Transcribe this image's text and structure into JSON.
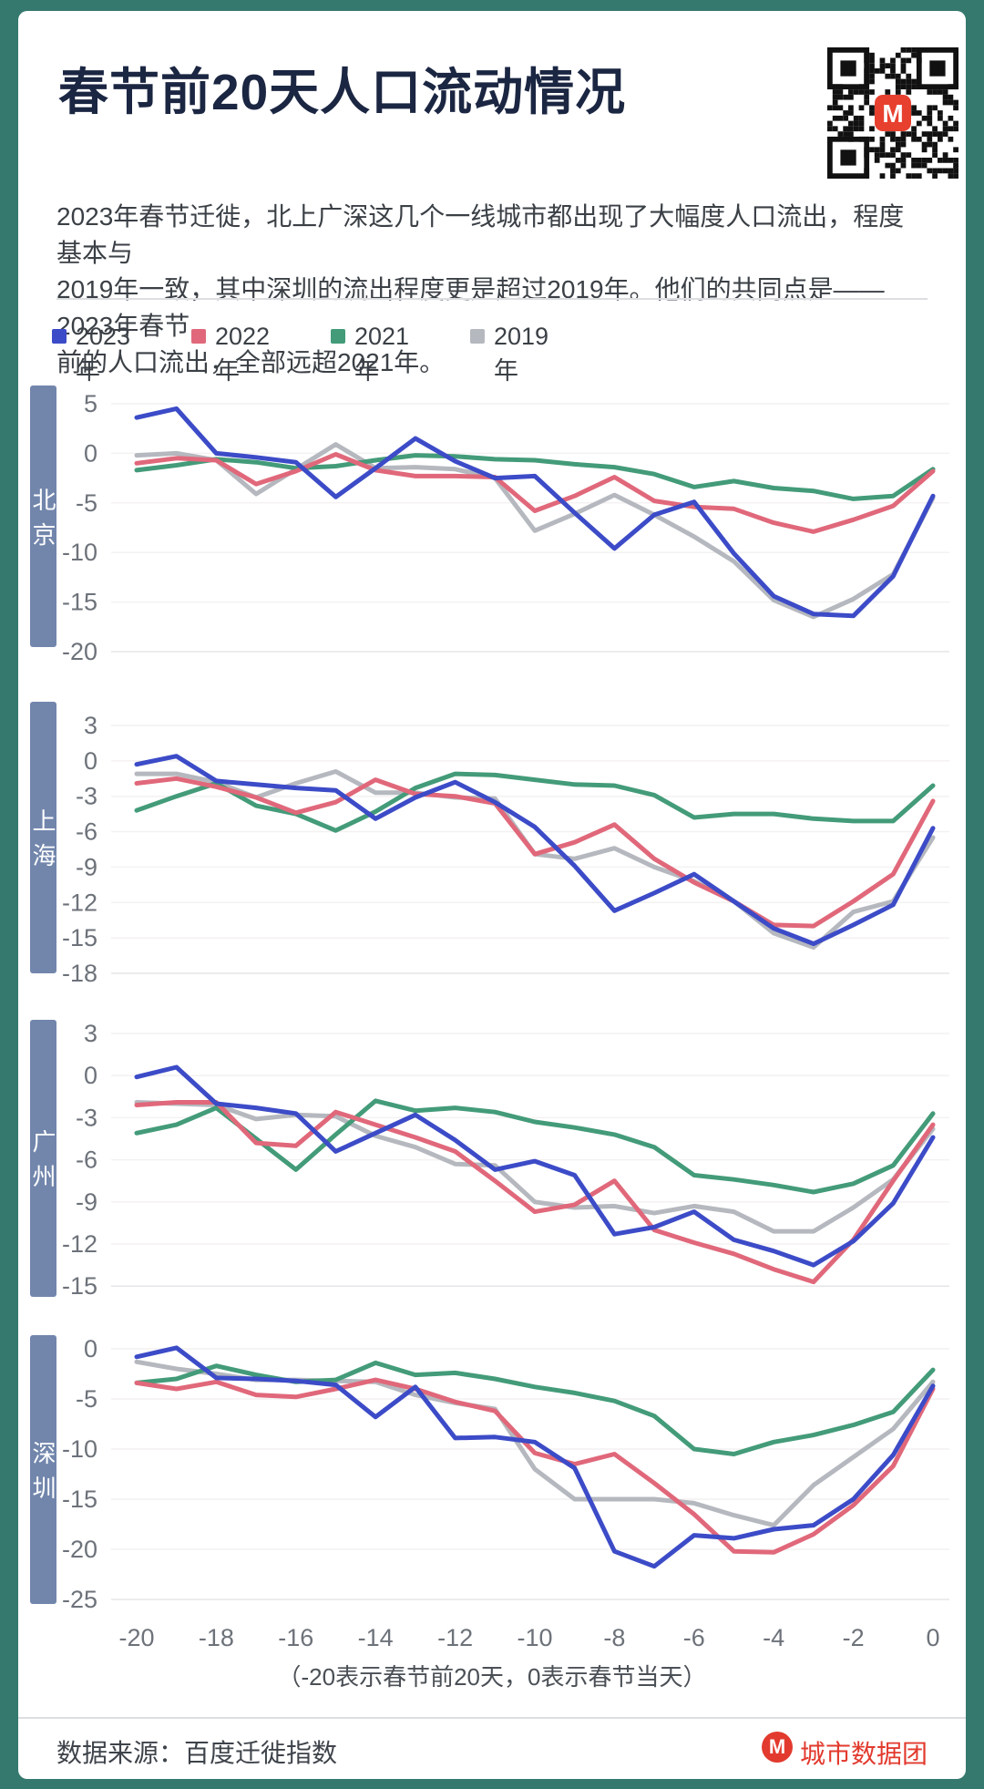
{
  "frame": {
    "border_color": "#35786e"
  },
  "header": {
    "title": "春节前20天人口流动情况",
    "qr_icon": "qr-code-with-brand-logo"
  },
  "intro": {
    "text": "2023年春节迁徙，北上广深这几个一线城市都出现了大幅度人口流出，程度基本与\n2019年一致，其中深圳的流出程度更是超过2019年。他们的共同点是——2023年春节\n前的人口流出，全部远超2021年。"
  },
  "legend": {
    "items": [
      {
        "label": "2023年",
        "color": "#3c4bc7"
      },
      {
        "label": "2022年",
        "color": "#e0687a"
      },
      {
        "label": "2021年",
        "color": "#439b79"
      },
      {
        "label": "2019年",
        "color": "#b5b8be"
      }
    ]
  },
  "chart_data": [
    {
      "type": "line",
      "city": "北京",
      "x_range": [
        -20,
        0
      ],
      "x_step": 1,
      "yticks": [
        5,
        0,
        -5,
        -10,
        -15,
        -20
      ],
      "ylim": [
        -20,
        5
      ],
      "grid": "horizontal-faint",
      "series": [
        {
          "name": "2023年",
          "color": "#3c4bc7",
          "values": [
            3.6,
            4.5,
            0.0,
            -0.4,
            -0.9,
            -4.4,
            -1.5,
            1.5,
            -0.8,
            -2.5,
            -2.3,
            -6.0,
            -9.6,
            -6.2,
            -4.9,
            -10.1,
            -14.4,
            -16.2,
            -16.4,
            -12.4,
            -4.3
          ]
        },
        {
          "name": "2022年",
          "color": "#e0687a",
          "values": [
            -1.0,
            -0.5,
            -0.7,
            -3.1,
            -1.8,
            -0.1,
            -1.7,
            -2.3,
            -2.3,
            -2.4,
            -5.8,
            -4.3,
            -2.4,
            -4.8,
            -5.4,
            -5.6,
            -7.0,
            -7.9,
            -6.7,
            -5.3,
            -1.8
          ]
        },
        {
          "name": "2021年",
          "color": "#439b79",
          "values": [
            -1.7,
            -1.2,
            -0.6,
            -0.9,
            -1.5,
            -1.3,
            -0.7,
            -0.2,
            -0.3,
            -0.6,
            -0.7,
            -1.1,
            -1.4,
            -2.1,
            -3.4,
            -2.8,
            -3.5,
            -3.8,
            -4.6,
            -4.3,
            -1.6
          ]
        },
        {
          "name": "2019年",
          "color": "#b5b8be",
          "values": [
            -0.2,
            0.0,
            -0.7,
            -4.1,
            -1.6,
            0.9,
            -1.5,
            -1.4,
            -1.6,
            -2.5,
            -7.8,
            -6.1,
            -4.2,
            -6.2,
            -8.4,
            -10.9,
            -14.8,
            -16.5,
            -14.7,
            -12.2,
            -4.5
          ]
        }
      ]
    },
    {
      "type": "line",
      "city": "上海",
      "x_range": [
        -20,
        0
      ],
      "x_step": 1,
      "yticks": [
        3,
        0,
        -3,
        -6,
        -9,
        -12,
        -15,
        -18
      ],
      "ylim": [
        -18,
        3
      ],
      "grid": "horizontal-faint",
      "series": [
        {
          "name": "2023年",
          "color": "#3c4bc7",
          "values": [
            -0.3,
            0.4,
            -1.7,
            -2.0,
            -2.3,
            -2.5,
            -4.9,
            -3.1,
            -1.8,
            -3.5,
            -5.6,
            -8.9,
            -12.7,
            -11.2,
            -9.6,
            -11.9,
            -14.2,
            -15.5,
            -13.9,
            -12.2,
            -5.7
          ]
        },
        {
          "name": "2022年",
          "color": "#e0687a",
          "values": [
            -1.9,
            -1.5,
            -2.2,
            -3.1,
            -4.4,
            -3.5,
            -1.6,
            -2.8,
            -3.0,
            -3.6,
            -7.9,
            -6.9,
            -5.4,
            -8.3,
            -10.3,
            -11.9,
            -13.9,
            -14.0,
            -11.9,
            -9.6,
            -3.4
          ]
        },
        {
          "name": "2021年",
          "color": "#439b79",
          "values": [
            -4.2,
            -3.0,
            -1.9,
            -3.8,
            -4.5,
            -5.9,
            -4.3,
            -2.3,
            -1.1,
            -1.2,
            -1.6,
            -2.0,
            -2.1,
            -2.9,
            -4.8,
            -4.5,
            -4.5,
            -4.9,
            -5.1,
            -5.1,
            -2.1
          ]
        },
        {
          "name": "2019年",
          "color": "#b5b8be",
          "values": [
            -1.1,
            -1.1,
            -1.8,
            -3.1,
            -1.9,
            -0.9,
            -2.7,
            -2.7,
            -3.1,
            -3.2,
            -7.9,
            -8.3,
            -7.4,
            -9.0,
            -10.2,
            -11.9,
            -14.6,
            -15.8,
            -12.8,
            -11.9,
            -6.5
          ]
        }
      ]
    },
    {
      "type": "line",
      "city": "广州",
      "x_range": [
        -20,
        0
      ],
      "x_step": 1,
      "yticks": [
        3,
        0,
        -3,
        -6,
        -9,
        -12,
        -15
      ],
      "ylim": [
        -15,
        3
      ],
      "grid": "horizontal-faint",
      "series": [
        {
          "name": "2023年",
          "color": "#3c4bc7",
          "values": [
            -0.1,
            0.6,
            -2.0,
            -2.3,
            -2.7,
            -5.4,
            -4.1,
            -2.8,
            -4.6,
            -6.7,
            -6.1,
            -7.1,
            -11.3,
            -10.8,
            -9.7,
            -11.7,
            -12.5,
            -13.5,
            -11.8,
            -9.1,
            -4.4
          ]
        },
        {
          "name": "2022年",
          "color": "#e0687a",
          "values": [
            -2.1,
            -1.9,
            -1.9,
            -4.8,
            -5.0,
            -2.6,
            -3.5,
            -4.4,
            -5.4,
            -7.5,
            -9.7,
            -9.2,
            -7.5,
            -11.0,
            -11.9,
            -12.7,
            -13.8,
            -14.7,
            -11.7,
            -7.5,
            -3.5
          ]
        },
        {
          "name": "2021年",
          "color": "#439b79",
          "values": [
            -4.1,
            -3.5,
            -2.3,
            -4.5,
            -6.7,
            -4.2,
            -1.8,
            -2.5,
            -2.3,
            -2.6,
            -3.3,
            -3.7,
            -4.2,
            -5.1,
            -7.1,
            -7.4,
            -7.8,
            -8.3,
            -7.7,
            -6.4,
            -2.7
          ]
        },
        {
          "name": "2019年",
          "color": "#b5b8be",
          "values": [
            -1.9,
            -2.0,
            -2.1,
            -3.1,
            -2.8,
            -2.9,
            -4.3,
            -5.1,
            -6.3,
            -6.4,
            -9.0,
            -9.4,
            -9.3,
            -9.8,
            -9.3,
            -9.7,
            -11.1,
            -11.1,
            -9.4,
            -7.4,
            -3.8
          ]
        }
      ]
    },
    {
      "type": "line",
      "city": "深圳",
      "x_range": [
        -20,
        0
      ],
      "x_step": 1,
      "yticks": [
        0,
        -5,
        -10,
        -15,
        -20,
        -25
      ],
      "ylim": [
        -25,
        0
      ],
      "grid": "horizontal-faint",
      "series": [
        {
          "name": "2023年",
          "color": "#3c4bc7",
          "values": [
            -0.8,
            0.1,
            -2.9,
            -3.0,
            -3.2,
            -3.6,
            -6.8,
            -3.8,
            -8.9,
            -8.8,
            -9.3,
            -11.9,
            -20.2,
            -21.7,
            -18.6,
            -18.9,
            -18.0,
            -17.6,
            -15.0,
            -10.6,
            -3.7
          ]
        },
        {
          "name": "2022年",
          "color": "#e0687a",
          "values": [
            -3.4,
            -4.0,
            -3.3,
            -4.6,
            -4.8,
            -4.0,
            -3.1,
            -4.0,
            -5.3,
            -6.2,
            -10.4,
            -11.5,
            -10.5,
            -13.4,
            -16.5,
            -20.2,
            -20.3,
            -18.5,
            -15.6,
            -11.7,
            -4.0
          ]
        },
        {
          "name": "2021年",
          "color": "#439b79",
          "values": [
            -3.4,
            -3.0,
            -1.7,
            -2.6,
            -3.3,
            -3.1,
            -1.4,
            -2.6,
            -2.4,
            -3.0,
            -3.8,
            -4.4,
            -5.2,
            -6.7,
            -10.0,
            -10.5,
            -9.3,
            -8.6,
            -7.6,
            -6.3,
            -2.1
          ]
        },
        {
          "name": "2019年",
          "color": "#b5b8be",
          "values": [
            -1.3,
            -2.0,
            -2.5,
            -3.1,
            -3.1,
            -3.2,
            -3.3,
            -4.6,
            -5.4,
            -6.0,
            -12.0,
            -15.0,
            -15.0,
            -15.0,
            -15.4,
            -16.6,
            -17.6,
            -13.6,
            -10.8,
            -8.0,
            -3.3
          ]
        }
      ]
    }
  ],
  "xaxis": {
    "tick_labels": [
      "-20",
      "-18",
      "-16",
      "-14",
      "-12",
      "-10",
      "-8",
      "-6",
      "-4",
      "-2",
      "0"
    ],
    "caption": "（-20表示春节前20天，0表示春节当天）"
  },
  "footer": {
    "source": "数据来源：百度迁徙指数",
    "brand": "城市数据团",
    "brand_color": "#e23a2e"
  }
}
